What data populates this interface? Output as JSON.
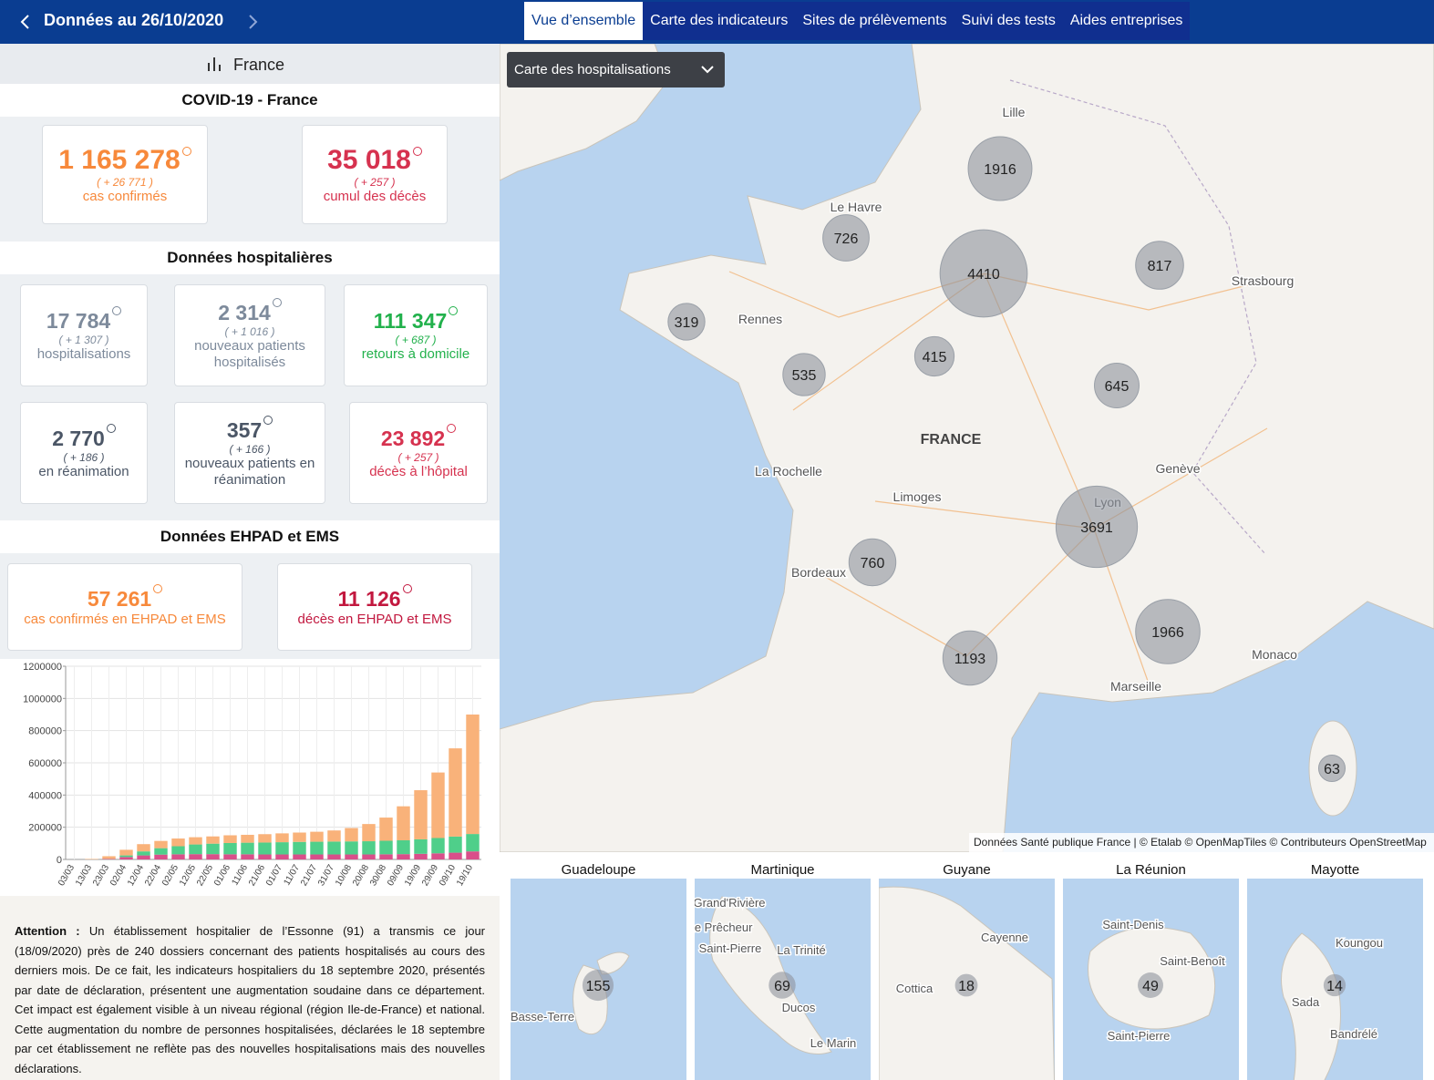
{
  "header": {
    "title": "Données au 26/10/2020",
    "tabs": [
      "Vue d’ensemble",
      "Carte des indicateurs",
      "Sites de prélèvements",
      "Suivi des tests",
      "Aides entreprises"
    ]
  },
  "sidebar": {
    "selector": "France",
    "sections": [
      {
        "title": "COVID-19 - France",
        "cards": [
          {
            "value": "1 165 278",
            "delta": "( + 26 771 )",
            "label": "cas confirmés",
            "color": "#f7893b"
          },
          {
            "value": "35 018",
            "delta": "( + 257 )",
            "label": "cumul des décès",
            "color": "#d6324f"
          }
        ]
      },
      {
        "title": "Données hospitalières",
        "cards": [
          {
            "value": "17 784",
            "delta": "( + 1 307 )",
            "label": "hospitalisations",
            "color": "#7d8a9b"
          },
          {
            "value": "2 314",
            "delta": "( + 1 016 )",
            "label": "nouveaux patients hospitalisés",
            "color": "#7d8a9b"
          },
          {
            "value": "111 347",
            "delta": "( + 687 )",
            "label": "retours à domicile",
            "color": "#22b14c"
          },
          {
            "value": "2 770",
            "delta": "( + 186 )",
            "label": "en réanimation",
            "color": "#4b5666"
          },
          {
            "value": "357",
            "delta": "( + 166 )",
            "label": "nouveaux patients en réanimation",
            "color": "#4b5666"
          },
          {
            "value": "23 892",
            "delta": "( + 257 )",
            "label": "décès à l’hôpital",
            "color": "#d6324f"
          }
        ]
      },
      {
        "title": "Données EHPAD et EMS",
        "cards": [
          {
            "value": "57 261",
            "label": "cas confirmés en EHPAD et EMS",
            "color": "#f7893b"
          },
          {
            "value": "11 126",
            "label": "décès en EHPAD et EMS",
            "color": "#c2183f"
          }
        ]
      }
    ]
  },
  "chart_data": {
    "type": "stacked_bar",
    "categories": [
      "03/03",
      "13/03",
      "23/03",
      "02/04",
      "12/04",
      "22/04",
      "02/05",
      "12/05",
      "22/05",
      "01/06",
      "11/06",
      "21/06",
      "01/07",
      "11/07",
      "21/07",
      "31/07",
      "10/08",
      "20/08",
      "30/08",
      "09/09",
      "19/09",
      "29/09",
      "09/10",
      "19/10"
    ],
    "series": [
      {
        "color": "#d94f8a",
        "values": [
          0,
          100,
          3000,
          15000,
          25000,
          30000,
          32000,
          33000,
          33000,
          32000,
          32000,
          31000,
          31000,
          31000,
          31000,
          31000,
          31000,
          31000,
          32000,
          33000,
          35000,
          38000,
          42000,
          50000
        ]
      },
      {
        "color": "#4fcf8a",
        "values": [
          0,
          0,
          1000,
          10000,
          25000,
          40000,
          50000,
          60000,
          65000,
          70000,
          72000,
          74000,
          76000,
          78000,
          79000,
          80000,
          81000,
          82000,
          84000,
          86000,
          90000,
          95000,
          100000,
          108000
        ]
      },
      {
        "color": "#f9b27a",
        "values": [
          0,
          2900,
          16000,
          35000,
          45000,
          45000,
          48000,
          45000,
          45000,
          48000,
          49000,
          52000,
          55000,
          58000,
          62000,
          69000,
          83000,
          107000,
          144000,
          211000,
          305000,
          407000,
          548000,
          742000
        ]
      }
    ],
    "ylim": [
      0,
      1200000
    ],
    "yticks": [
      0,
      200000,
      400000,
      600000,
      800000,
      1000000,
      1200000
    ],
    "grid": true
  },
  "notice": {
    "label": "Attention :",
    "text": "Un établissement hospitalier de l’Essonne (91) a transmis ce jour (18/09/2020) près de 240 dossiers concernant des patients hospitalisés au cours des derniers mois. De ce fait, les indicateurs hospitaliers du 18 septembre 2020, présentés par date de déclaration, présentent une augmentation soudaine dans ce département. Cet impact est également visible à un niveau régional (région Ile-de-France) et national. Cette augmentation du nombre de personnes hospitalisées, déclarées le 18 septembre par cet établissement ne reflète pas des nouvelles hospitalisations mais des nouvelles déclarations."
  },
  "map": {
    "dropdown": "Carte des hospitalisations",
    "country": "FRANCE",
    "places": [
      "Lille",
      "Le Havre",
      "Strasbourg",
      "Rennes",
      "La Rochelle",
      "Limoges",
      "Genève",
      "Lyon",
      "Bordeaux",
      "Monaco",
      "Marseille"
    ],
    "bubbles": [
      1916,
      726,
      4410,
      817,
      319,
      535,
      415,
      645,
      3691,
      760,
      1966,
      1193,
      63
    ],
    "attribution": "Données Santé publique France | © Etalab © OpenMapTiles © Contributeurs OpenStreetMap"
  },
  "overseas": [
    {
      "title": "Guadeloupe",
      "places": [
        "Basse-Terre"
      ],
      "bubble": 155
    },
    {
      "title": "Martinique",
      "places": [
        "Grand'Rivière",
        "Le Prêcheur",
        "Saint-Pierre",
        "La Trinité",
        "Ducos",
        "Le Marin"
      ],
      "bubble": 69
    },
    {
      "title": "Guyane",
      "places": [
        "Cayenne",
        "Cottica"
      ],
      "bubble": 18
    },
    {
      "title": "La Réunion",
      "places": [
        "Saint-Denis",
        "Saint-Benoît",
        "Saint-Pierre"
      ],
      "bubble": 49
    },
    {
      "title": "Mayotte",
      "places": [
        "Koungou",
        "Sada",
        "Bandrélé"
      ],
      "bubble": 14
    }
  ]
}
